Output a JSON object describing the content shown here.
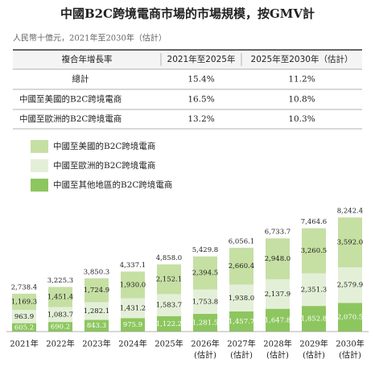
{
  "chart_data": {
    "type": "stacked_bar",
    "title": "中國B2C跨境電商市場的市場規模，按GMV計",
    "subtitle": "人民幣十億元，2021年至2030年（估計）",
    "table": {
      "header": [
        "複合年增長率",
        "2021年至2025年",
        "2025年至2030年（估計）"
      ],
      "rows": [
        [
          "總計",
          "15.4%",
          "11.2%"
        ],
        [
          "中國至美國的B2C跨境電商",
          "16.5%",
          "10.8%"
        ],
        [
          "中國至歐洲的B2C跨境電商",
          "13.2%",
          "10.3%"
        ]
      ]
    },
    "categories": [
      "2021年",
      "2022年",
      "2023年",
      "2024年",
      "2025年",
      "2026年",
      "2027年",
      "2028年",
      "2029年",
      "2030年"
    ],
    "category_sublabels": [
      null,
      null,
      null,
      null,
      null,
      "(估計)",
      "(估計)",
      "(估計)",
      "(估計)",
      "(估計)"
    ],
    "series": [
      {
        "name": "中國至其他地區的B2C跨境電商",
        "color": "#8dc65f",
        "values": [
          605.2,
          690.2,
          843.3,
          975.9,
          1122.2,
          1281.5,
          1457.7,
          1647.8,
          1852.8,
          2070.5
        ],
        "value_labels": [
          "605.2",
          "690.2",
          "843.3",
          "975.9",
          "1,122.2",
          "1,281.5",
          "1,457.7",
          "1,647.8",
          "1,852.8",
          "2,070.5"
        ]
      },
      {
        "name": "中國至歐洲的B2C跨境電商",
        "color": "#e4efd8",
        "values": [
          963.9,
          1083.7,
          1282.1,
          1431.2,
          1583.7,
          1753.8,
          1938.0,
          2137.9,
          2351.3,
          2579.9
        ],
        "value_labels": [
          "963.9",
          "1,083.7",
          "1,282.1",
          "1,431.2",
          "1,583.7",
          "1,753.8",
          "1,938.0",
          "2,137.9",
          "2,351.3",
          "2,579.9"
        ]
      },
      {
        "name": "中國至美國的B2C跨境電商",
        "color": "#c6dfa3",
        "values": [
          1169.3,
          1451.4,
          1724.9,
          1930.0,
          2152.1,
          2394.5,
          2660.4,
          2948.0,
          3260.5,
          3592.0
        ],
        "value_labels": [
          "1,169.3",
          "1,451.4",
          "1,724.9",
          "1,930.0",
          "2,152.1",
          "2,394.5",
          "2,660.4",
          "2,948.0",
          "3,260.5",
          "3,592.0"
        ]
      }
    ],
    "totals": [
      2738.4,
      3225.3,
      3850.3,
      4337.1,
      4858.0,
      5429.8,
      6056.1,
      6733.7,
      7464.6,
      8242.4
    ],
    "total_labels": [
      "2,738.4",
      "3,225.3",
      "3,850.3",
      "4,337.1",
      "4,858.0",
      "5,429.8",
      "6,056.1",
      "6,733.7",
      "7,464.6",
      "8,242.4"
    ]
  }
}
